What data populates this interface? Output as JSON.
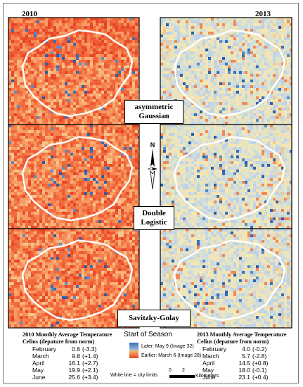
{
  "years": {
    "left": "2010",
    "right": "2013"
  },
  "methods": [
    {
      "line1": "asymmetric",
      "line2": "Gaussian"
    },
    {
      "line1": "Double",
      "line2": "Logistic"
    },
    {
      "line1": "Savitzky-Golay",
      "line2": ""
    }
  ],
  "north_label": "N",
  "legend": {
    "title": "Start of Season",
    "later": "Later: May 9 (Image 32)",
    "earlier": "Earlier: March 6 (Image 28)",
    "white_line": "White line = city limits",
    "scale_0": "0",
    "scale_2": "2",
    "scale_unit": "Kilometers"
  },
  "colors": {
    "later": "#3a6fb7",
    "earlier": "#e8452a",
    "mid": "#f6e7b0",
    "city_limits": "#ffffff"
  },
  "stats_2010": {
    "title1": "2010 Monthly Average Temperature",
    "title2": "Celius  (depature from norm)",
    "rows": [
      {
        "month": "February",
        "value": "0.6",
        "dep": "(-3.3)"
      },
      {
        "month": "March",
        "value": "9.8",
        "dep": "(+1.4)"
      },
      {
        "month": "April",
        "value": "16.1",
        "dep": "(+2.7)"
      },
      {
        "month": "May",
        "value": "19.9",
        "dep": "(+2.1)"
      },
      {
        "month": "June",
        "value": "25.6",
        "dep": "(+3.4)"
      }
    ]
  },
  "stats_2013": {
    "title1": "2013 Monthly Average Temperature",
    "title2": "Celius  (depature from norm)",
    "rows": [
      {
        "month": "February",
        "value": "4.0",
        "dep": "(-0.2)"
      },
      {
        "month": "March",
        "value": "5.7",
        "dep": "(-2.8)"
      },
      {
        "month": "April",
        "value": "14.5",
        "dep": "(+0.8)"
      },
      {
        "month": "May",
        "value": "18.0",
        "dep": "(-0.1)"
      },
      {
        "month": "June",
        "value": "23.1",
        "dep": "(+0.4)"
      }
    ]
  }
}
